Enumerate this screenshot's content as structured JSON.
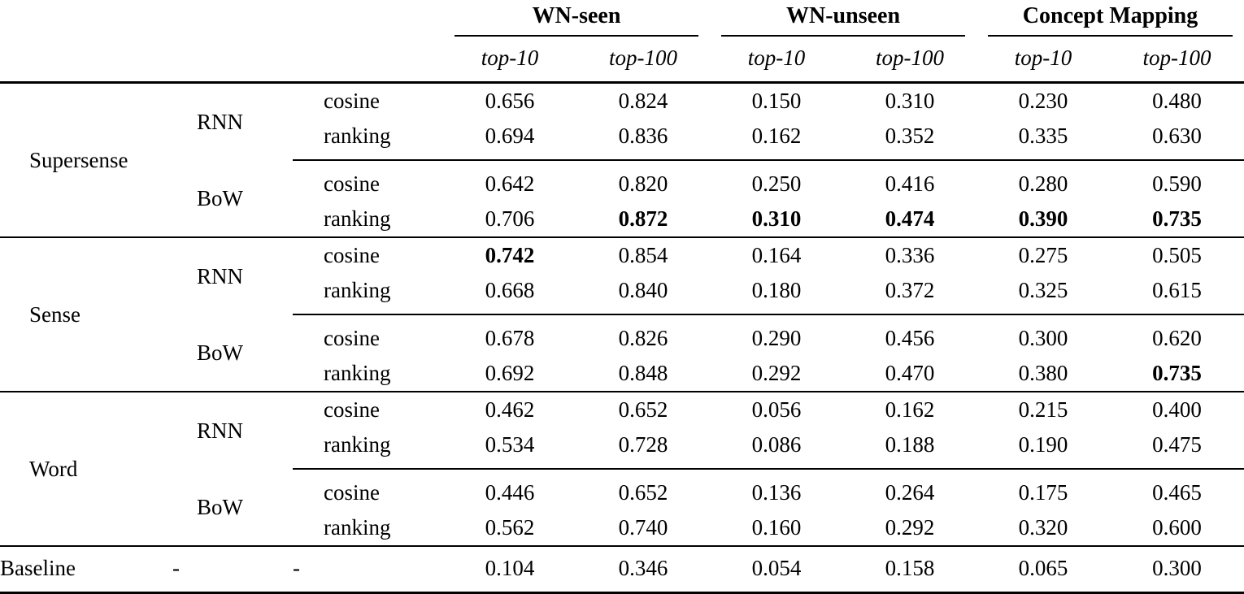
{
  "page": {
    "background": "#ffffff",
    "text_color": "#000000"
  },
  "table": {
    "column_groups": [
      {
        "label": "WN-seen",
        "sub": [
          "top-10",
          "top-100"
        ]
      },
      {
        "label": "WN-unseen",
        "sub": [
          "top-10",
          "top-100"
        ]
      },
      {
        "label": "Concept Mapping",
        "sub": [
          "top-10",
          "top-100"
        ]
      }
    ],
    "row_groups": [
      {
        "category": "Supersense",
        "blocks": [
          {
            "encoder": "RNN",
            "rows": [
              {
                "loss": "cosine",
                "values": [
                  "0.656",
                  "0.824",
                  "0.150",
                  "0.310",
                  "0.230",
                  "0.480"
                ],
                "bold": [
                  0,
                  0,
                  0,
                  0,
                  0,
                  0
                ]
              },
              {
                "loss": "ranking",
                "values": [
                  "0.694",
                  "0.836",
                  "0.162",
                  "0.352",
                  "0.335",
                  "0.630"
                ],
                "bold": [
                  0,
                  0,
                  0,
                  0,
                  0,
                  0
                ]
              }
            ]
          },
          {
            "encoder": "BoW",
            "rows": [
              {
                "loss": "cosine",
                "values": [
                  "0.642",
                  "0.820",
                  "0.250",
                  "0.416",
                  "0.280",
                  "0.590"
                ],
                "bold": [
                  0,
                  0,
                  0,
                  0,
                  0,
                  0
                ]
              },
              {
                "loss": "ranking",
                "values": [
                  "0.706",
                  "0.872",
                  "0.310",
                  "0.474",
                  "0.390",
                  "0.735"
                ],
                "bold": [
                  0,
                  1,
                  1,
                  1,
                  1,
                  1
                ]
              }
            ]
          }
        ]
      },
      {
        "category": "Sense",
        "blocks": [
          {
            "encoder": "RNN",
            "rows": [
              {
                "loss": "cosine",
                "values": [
                  "0.742",
                  "0.854",
                  "0.164",
                  "0.336",
                  "0.275",
                  "0.505"
                ],
                "bold": [
                  1,
                  0,
                  0,
                  0,
                  0,
                  0
                ]
              },
              {
                "loss": "ranking",
                "values": [
                  "0.668",
                  "0.840",
                  "0.180",
                  "0.372",
                  "0.325",
                  "0.615"
                ],
                "bold": [
                  0,
                  0,
                  0,
                  0,
                  0,
                  0
                ]
              }
            ]
          },
          {
            "encoder": "BoW",
            "rows": [
              {
                "loss": "cosine",
                "values": [
                  "0.678",
                  "0.826",
                  "0.290",
                  "0.456",
                  "0.300",
                  "0.620"
                ],
                "bold": [
                  0,
                  0,
                  0,
                  0,
                  0,
                  0
                ]
              },
              {
                "loss": "ranking",
                "values": [
                  "0.692",
                  "0.848",
                  "0.292",
                  "0.470",
                  "0.380",
                  "0.735"
                ],
                "bold": [
                  0,
                  0,
                  0,
                  0,
                  0,
                  1
                ]
              }
            ]
          }
        ]
      },
      {
        "category": "Word",
        "blocks": [
          {
            "encoder": "RNN",
            "rows": [
              {
                "loss": "cosine",
                "values": [
                  "0.462",
                  "0.652",
                  "0.056",
                  "0.162",
                  "0.215",
                  "0.400"
                ],
                "bold": [
                  0,
                  0,
                  0,
                  0,
                  0,
                  0
                ]
              },
              {
                "loss": "ranking",
                "values": [
                  "0.534",
                  "0.728",
                  "0.086",
                  "0.188",
                  "0.190",
                  "0.475"
                ],
                "bold": [
                  0,
                  0,
                  0,
                  0,
                  0,
                  0
                ]
              }
            ]
          },
          {
            "encoder": "BoW",
            "rows": [
              {
                "loss": "cosine",
                "values": [
                  "0.446",
                  "0.652",
                  "0.136",
                  "0.264",
                  "0.175",
                  "0.465"
                ],
                "bold": [
                  0,
                  0,
                  0,
                  0,
                  0,
                  0
                ]
              },
              {
                "loss": "ranking",
                "values": [
                  "0.562",
                  "0.740",
                  "0.160",
                  "0.292",
                  "0.320",
                  "0.600"
                ],
                "bold": [
                  0,
                  0,
                  0,
                  0,
                  0,
                  0
                ]
              }
            ]
          }
        ]
      }
    ],
    "baseline": {
      "category": "Baseline",
      "encoder": "-",
      "loss": "-",
      "values": [
        "0.104",
        "0.346",
        "0.054",
        "0.158",
        "0.065",
        "0.300"
      ],
      "bold": [
        0,
        0,
        0,
        0,
        0,
        0
      ]
    }
  }
}
